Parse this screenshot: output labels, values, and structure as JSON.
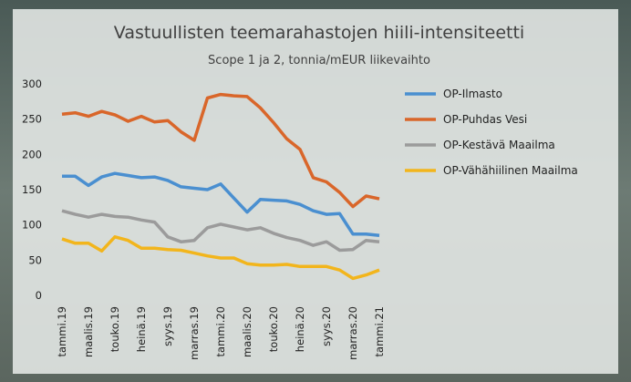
{
  "chart_data": {
    "type": "line",
    "title": "Vastuullisten teemarahastojen hiili-intensiteetti",
    "subtitle": "Scope 1 ja 2, tonnia/mEUR liikevaihto",
    "categories": [
      "tammi.19",
      null,
      "maalis.19",
      null,
      "touko.19",
      null,
      "heinä.19",
      null,
      "syys.19",
      null,
      "marras.19",
      null,
      "tammi.20",
      null,
      "maalis.20",
      null,
      "touko.20",
      null,
      "heinä.20",
      null,
      "syys.20",
      null,
      "marras.20",
      null,
      "tammi.21"
    ],
    "series": [
      {
        "name": "OP-Ilmasto",
        "color": "#4a8fd0",
        "values": [
          169,
          169,
          156,
          168,
          173,
          170,
          167,
          168,
          163,
          154,
          152,
          150,
          158,
          138,
          118,
          136,
          135,
          134,
          129,
          120,
          115,
          116,
          87,
          87,
          85
        ]
      },
      {
        "name": "OP-Puhdas Vesi",
        "color": "#d9662a",
        "values": [
          257,
          259,
          254,
          261,
          256,
          247,
          254,
          246,
          248,
          232,
          220,
          280,
          285,
          283,
          282,
          266,
          245,
          222,
          207,
          167,
          161,
          146,
          126,
          141,
          137
        ]
      },
      {
        "name": "OP-Kestävä Maailma",
        "color": "#9b9b9b",
        "values": [
          120,
          115,
          111,
          115,
          112,
          111,
          107,
          104,
          83,
          76,
          78,
          96,
          101,
          97,
          93,
          96,
          88,
          82,
          78,
          71,
          76,
          64,
          65,
          78,
          76
        ]
      },
      {
        "name": "OP-Vähähiilinen Maailma",
        "color": "#f2b51c",
        "values": [
          80,
          74,
          74,
          63,
          83,
          78,
          67,
          67,
          65,
          64,
          60,
          56,
          53,
          53,
          45,
          43,
          43,
          44,
          41,
          41,
          41,
          36,
          24,
          29,
          36
        ]
      }
    ],
    "ylim": [
      0,
      300
    ],
    "yticks": [
      0,
      50,
      100,
      150,
      200,
      250,
      300
    ],
    "legend": "right"
  }
}
